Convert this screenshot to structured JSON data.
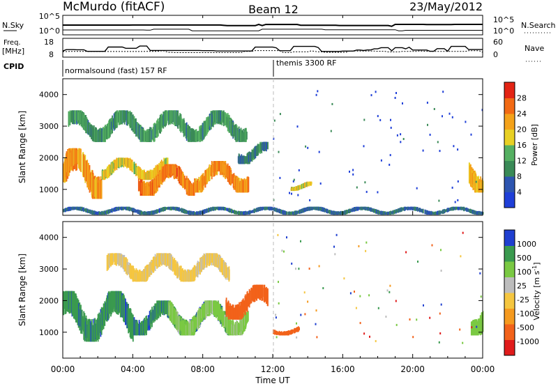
{
  "header": {
    "station": "McMurdo (fitACF)",
    "beam": "Beam 12",
    "date": "23/May/2012"
  },
  "status_panels": {
    "nsky": {
      "label": "N.Sky",
      "ticks_left": [
        "10^5",
        "10^0"
      ],
      "ticks_right": [
        "10^5",
        "10^0"
      ],
      "right_label": "N.Search"
    },
    "freq": {
      "label_line1": "Freq.",
      "label_line2": "[MHz]",
      "ticks_left": [
        "18",
        "8"
      ],
      "ticks_right": [
        "60",
        "0"
      ],
      "right_label": "Nave"
    },
    "cpid": {
      "label": "CPID",
      "modes": [
        "normalsound (fast) 157 RF",
        "themis 3300 RF"
      ]
    }
  },
  "colors": {
    "power": [
      "#1f3fd8",
      "#2d55b0",
      "#3a8a57",
      "#55b062",
      "#e8d024",
      "#f4a21a",
      "#f26a14",
      "#e32414"
    ],
    "velocity": [
      "#e01b1b",
      "#f2621a",
      "#f59a1f",
      "#f5c640",
      "#bdbdbd",
      "#7ac943",
      "#3a9a4f",
      "#1f3fd0"
    ]
  },
  "chart_data": [
    {
      "type": "heatmap",
      "panel": "power",
      "ylabel": "Slant Range [km]",
      "xlabel": "Time UT",
      "x_ticks": [
        "00:00",
        "04:00",
        "08:00",
        "12:00",
        "16:00",
        "20:00",
        "00:00"
      ],
      "xlim_hours": [
        0,
        24
      ],
      "y_ticks": [
        1000,
        2000,
        3000,
        4000
      ],
      "ylim_km": [
        180,
        4500
      ],
      "colorbar": {
        "label": "Power [dB]",
        "ticks": [
          4,
          8,
          12,
          16,
          20,
          24,
          28
        ],
        "range": [
          0,
          30
        ]
      },
      "echo_regions": [
        {
          "t": [
            0.0,
            2.2
          ],
          "r": [
            700,
            2300
          ],
          "level": 22
        },
        {
          "t": [
            2.2,
            6.0
          ],
          "r": [
            1300,
            2000
          ],
          "level": 18
        },
        {
          "t": [
            4.3,
            7.5
          ],
          "r": [
            800,
            1800
          ],
          "level": 24
        },
        {
          "t": [
            7.5,
            10.6
          ],
          "r": [
            900,
            1900
          ],
          "level": 23
        },
        {
          "t": [
            0.3,
            10.5
          ],
          "r": [
            2500,
            3500
          ],
          "level": 10
        },
        {
          "t": [
            10.0,
            11.7
          ],
          "r": [
            1800,
            2500
          ],
          "level": 7
        },
        {
          "t": [
            13.0,
            14.2
          ],
          "r": [
            950,
            1250
          ],
          "level": 18
        },
        {
          "t": [
            23.2,
            24.0
          ],
          "r": [
            900,
            2100
          ],
          "level": 20
        },
        {
          "t": [
            0.0,
            24.0
          ],
          "r": [
            200,
            450
          ],
          "level": 6
        }
      ]
    },
    {
      "type": "heatmap",
      "panel": "velocity",
      "ylabel": "Slant Range [km]",
      "xlabel": "Time UT",
      "x_ticks": [
        "00:00",
        "04:00",
        "08:00",
        "12:00",
        "16:00",
        "20:00",
        "00:00"
      ],
      "xlim_hours": [
        0,
        24
      ],
      "y_ticks": [
        1000,
        2000,
        3000,
        4000
      ],
      "ylim_km": [
        180,
        4500
      ],
      "colorbar": {
        "label": "Velocity [m s^-1]",
        "ticks": [
          "-1000",
          "-500",
          "-100",
          "-25",
          "25",
          "100",
          "500",
          "1000"
        ]
      },
      "echo_regions": [
        {
          "t": [
            0.0,
            4.0
          ],
          "r": [
            700,
            2300
          ],
          "velocity": 800
        },
        {
          "t": [
            4.0,
            9.5
          ],
          "r": [
            900,
            2000
          ],
          "velocity": 900
        },
        {
          "t": [
            6.0,
            10.6
          ],
          "r": [
            900,
            2000
          ],
          "velocity": 150
        },
        {
          "t": [
            2.5,
            9.5
          ],
          "r": [
            2600,
            3500
          ],
          "velocity": 10
        },
        {
          "t": [
            9.3,
            11.7
          ],
          "r": [
            1400,
            2500
          ],
          "velocity": -200
        },
        {
          "t": [
            12.0,
            13.5
          ],
          "r": [
            900,
            1200
          ],
          "velocity": -150
        },
        {
          "t": [
            23.3,
            24.0
          ],
          "r": [
            900,
            2100
          ],
          "velocity": 300
        }
      ]
    }
  ]
}
